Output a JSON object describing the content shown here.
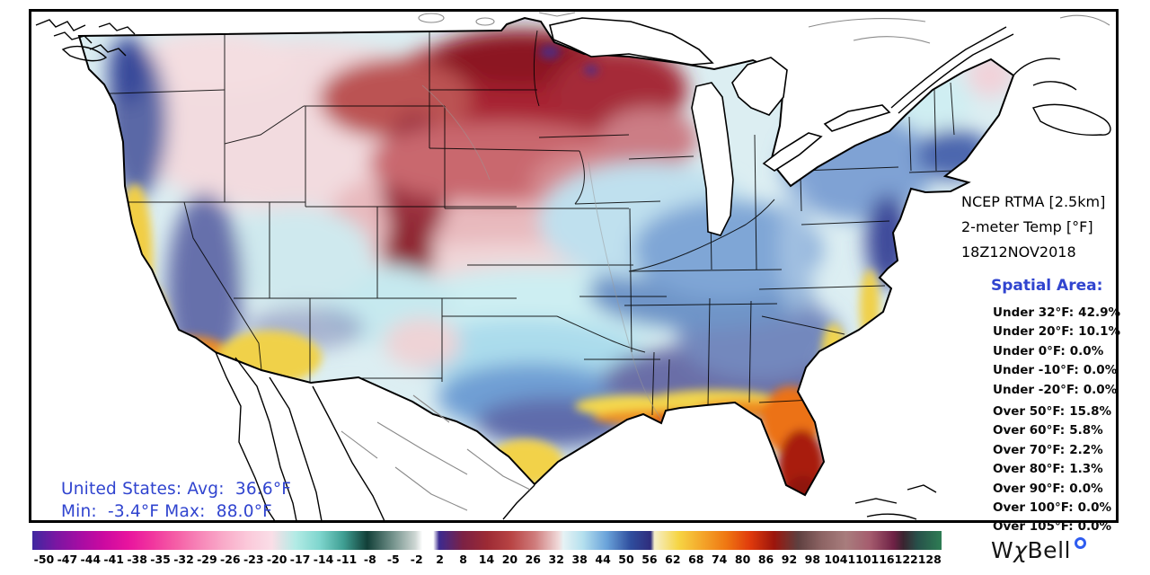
{
  "header": {
    "line1": "NCEP RTMA [2.5km]",
    "line2": "2-meter Temp [°F]",
    "line3": "18Z12NOV2018"
  },
  "spatial": {
    "heading": "Spatial Area:",
    "under": [
      {
        "label": "Under 32°F:",
        "value": "42.9%"
      },
      {
        "label": "Under 20°F:",
        "value": "10.1%"
      },
      {
        "label": "Under 0°F:",
        "value": "0.0%"
      },
      {
        "label": "Under -10°F:",
        "value": "0.0%"
      },
      {
        "label": "Under -20°F:",
        "value": "0.0%"
      }
    ],
    "over": [
      {
        "label": "Over 50°F:",
        "value": "15.8%"
      },
      {
        "label": "Over 60°F:",
        "value": "5.8%"
      },
      {
        "label": "Over 70°F:",
        "value": "2.2%"
      },
      {
        "label": "Over 80°F:",
        "value": "1.3%"
      },
      {
        "label": "Over 90°F:",
        "value": "0.0%"
      },
      {
        "label": "Over 100°F:",
        "value": "0.0%"
      },
      {
        "label": "Over 105°F:",
        "value": "0.0%"
      }
    ]
  },
  "summary": {
    "line1": "United States: Avg:  36.6°F",
    "line2": "Min:  -3.4°F Max:  88.0°F"
  },
  "colorbar": {
    "ticks": [
      "-50",
      "-47",
      "-44",
      "-41",
      "-38",
      "-35",
      "-32",
      "-29",
      "-26",
      "-23",
      "-20",
      "-17",
      "-14",
      "-11",
      "-8",
      "-5",
      "-2",
      "2",
      "8",
      "14",
      "20",
      "26",
      "32",
      "38",
      "44",
      "50",
      "56",
      "62",
      "68",
      "74",
      "80",
      "86",
      "92",
      "98",
      "104",
      "110",
      "116",
      "122",
      "128"
    ],
    "stops": [
      {
        "p": 0.0,
        "c": "#3f28a0"
      },
      {
        "p": 0.0263,
        "c": "#7a16a2"
      },
      {
        "p": 0.0526,
        "c": "#a60da3"
      },
      {
        "p": 0.0789,
        "c": "#cc0aa0"
      },
      {
        "p": 0.1053,
        "c": "#e8149e"
      },
      {
        "p": 0.1316,
        "c": "#f1359e"
      },
      {
        "p": 0.1579,
        "c": "#f55ea6"
      },
      {
        "p": 0.1842,
        "c": "#f786b8"
      },
      {
        "p": 0.2105,
        "c": "#f9abc9"
      },
      {
        "p": 0.2368,
        "c": "#fbc9da"
      },
      {
        "p": 0.2632,
        "c": "#fadee7"
      },
      {
        "p": 0.2895,
        "c": "#b2ebe5"
      },
      {
        "p": 0.3158,
        "c": "#7fd6ce"
      },
      {
        "p": 0.3421,
        "c": "#3f9f93"
      },
      {
        "p": 0.3684,
        "c": "#123f38"
      },
      {
        "p": 0.3947,
        "c": "#6d8d86"
      },
      {
        "p": 0.4211,
        "c": "#cdd6d3"
      },
      {
        "p": 0.429,
        "c": "#ffffff"
      },
      {
        "p": 0.441,
        "c": "#ffffff"
      },
      {
        "p": 0.4474,
        "c": "#3c2a90"
      },
      {
        "p": 0.4737,
        "c": "#7c2144"
      },
      {
        "p": 0.5,
        "c": "#9c2a34"
      },
      {
        "p": 0.5263,
        "c": "#b84444"
      },
      {
        "p": 0.5526,
        "c": "#cf7b7b"
      },
      {
        "p": 0.5789,
        "c": "#f0dada"
      },
      {
        "p": 0.584,
        "c": "#e6f2f4"
      },
      {
        "p": 0.6053,
        "c": "#b5e0ee"
      },
      {
        "p": 0.6316,
        "c": "#6aa3da"
      },
      {
        "p": 0.6579,
        "c": "#2f4e9e"
      },
      {
        "p": 0.68,
        "c": "#2f2c7c"
      },
      {
        "p": 0.6842,
        "c": "#f6efc9"
      },
      {
        "p": 0.7105,
        "c": "#f6d544"
      },
      {
        "p": 0.7368,
        "c": "#f4a62a"
      },
      {
        "p": 0.7632,
        "c": "#ef7712"
      },
      {
        "p": 0.7895,
        "c": "#e03a0c"
      },
      {
        "p": 0.8158,
        "c": "#9c150c"
      },
      {
        "p": 0.8421,
        "c": "#5e4040"
      },
      {
        "p": 0.8684,
        "c": "#8d6464"
      },
      {
        "p": 0.8947,
        "c": "#a87d7d"
      },
      {
        "p": 0.9211,
        "c": "#a55c6e"
      },
      {
        "p": 0.9474,
        "c": "#6e2145"
      },
      {
        "p": 0.958,
        "c": "#3a2430"
      },
      {
        "p": 0.9737,
        "c": "#27514a"
      },
      {
        "p": 1.0,
        "c": "#2e7d54"
      }
    ]
  },
  "logo": {
    "w": "W",
    "chi": "χ",
    "bell": "Bell"
  },
  "colors": {
    "text_blue": "#3044cf",
    "frame": "#000000",
    "ocean": "#ffffff"
  }
}
